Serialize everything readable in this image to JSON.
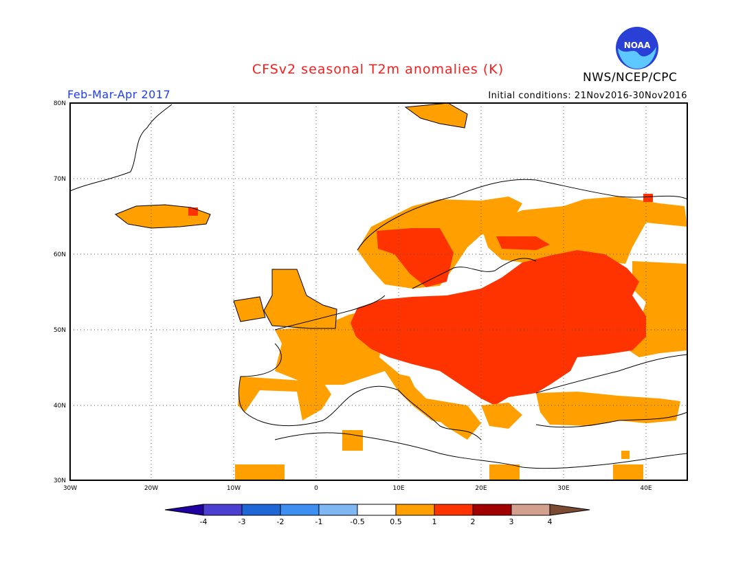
{
  "header": {
    "title": "CFSv2 seasonal T2m anomalies (K)",
    "period": "Feb-Mar-Apr 2017",
    "initial_conditions": "Initial conditions: 21Nov2016-30Nov2016",
    "agency": "NWS/NCEP/CPC",
    "logo_text": "NOAA"
  },
  "map": {
    "region": "Europe",
    "lat_labels": [
      "80N",
      "70N",
      "60N",
      "50N",
      "40N",
      "30N"
    ],
    "lon_labels": [
      "30W",
      "20W",
      "10W",
      "0",
      "10E",
      "20E",
      "30E",
      "40E"
    ],
    "grid": "dotted",
    "anomaly_regions": [
      {
        "area": "Central & Eastern Europe",
        "category": "1 to 2"
      },
      {
        "area": "Western Europe, Scandinavia, Iceland, Turkey",
        "category": "0.5 to 1"
      },
      {
        "area": "Mediterranean, North Africa, Atlantic",
        "category": "-0.5 to 0.5"
      }
    ]
  },
  "colorbar": {
    "labels": [
      "-4",
      "-3",
      "-2",
      "-1",
      "-0.5",
      "0.5",
      "1",
      "2",
      "3",
      "4"
    ],
    "colors": [
      "#2000a0",
      "#4a3fd0",
      "#1f66d6",
      "#3d8ff2",
      "#7fb6f4",
      "#ffffff",
      "#ff9f00",
      "#ff3300",
      "#a00000",
      "#d2a08c",
      "#7a4a32"
    ]
  },
  "colors": {
    "title": "#ff1a1a",
    "period": "#1a3cff",
    "anom_0_5_to_1": "#ff9f00",
    "anom_1_to_2": "#ff3300",
    "anom_2_to_3": "#a00000"
  }
}
